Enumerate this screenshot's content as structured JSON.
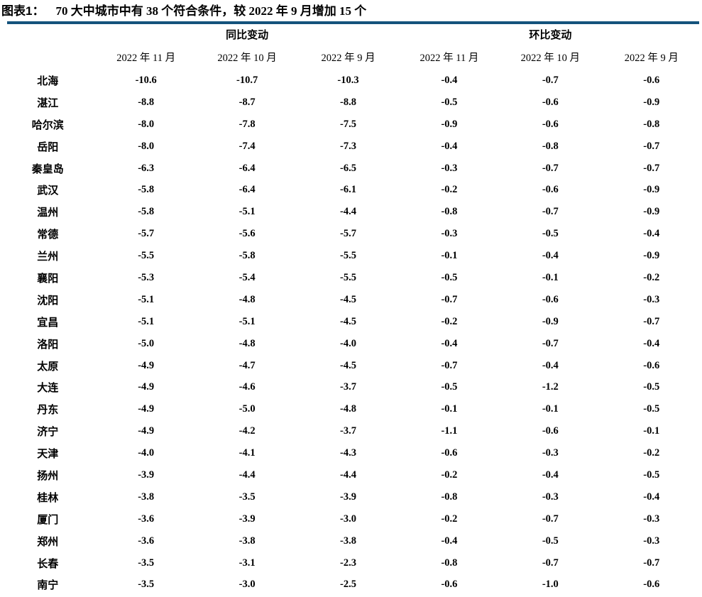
{
  "header": {
    "tag": "图表1：",
    "title_text": "70 大中城市中有 38 个符合条件，较 2022 年 9 月增加 15 个"
  },
  "colors": {
    "background": "#FFFFFF",
    "text": "#000000",
    "accent_line": "#14537C"
  },
  "chart_data": {
    "type": "table",
    "title": "图表1： 70 大中城市中有 38 个符合条件，较 2022 年 9 月增加 15 个",
    "group_headers": [
      "同比变动",
      "环比变动"
    ],
    "city_column_header": "",
    "month_headers": [
      "2022 年 11 月",
      "2022 年 10 月",
      "2022 年 9 月",
      "2022 年 11 月",
      "2022 年 10 月",
      "2022 年 9 月"
    ],
    "rows": [
      {
        "city": "北海",
        "values": [
          "-10.6",
          "-10.7",
          "-10.3",
          "-0.4",
          "-0.7",
          "-0.6"
        ]
      },
      {
        "city": "湛江",
        "values": [
          "-8.8",
          "-8.7",
          "-8.8",
          "-0.5",
          "-0.6",
          "-0.9"
        ]
      },
      {
        "city": "哈尔滨",
        "values": [
          "-8.0",
          "-7.8",
          "-7.5",
          "-0.9",
          "-0.6",
          "-0.8"
        ]
      },
      {
        "city": "岳阳",
        "values": [
          "-8.0",
          "-7.4",
          "-7.3",
          "-0.4",
          "-0.8",
          "-0.7"
        ]
      },
      {
        "city": "秦皇岛",
        "values": [
          "-6.3",
          "-6.4",
          "-6.5",
          "-0.3",
          "-0.7",
          "-0.7"
        ]
      },
      {
        "city": "武汉",
        "values": [
          "-5.8",
          "-6.4",
          "-6.1",
          "-0.2",
          "-0.6",
          "-0.9"
        ]
      },
      {
        "city": "温州",
        "values": [
          "-5.8",
          "-5.1",
          "-4.4",
          "-0.8",
          "-0.7",
          "-0.9"
        ]
      },
      {
        "city": "常德",
        "values": [
          "-5.7",
          "-5.6",
          "-5.7",
          "-0.3",
          "-0.5",
          "-0.4"
        ]
      },
      {
        "city": "兰州",
        "values": [
          "-5.5",
          "-5.8",
          "-5.5",
          "-0.1",
          "-0.4",
          "-0.9"
        ]
      },
      {
        "city": "襄阳",
        "values": [
          "-5.3",
          "-5.4",
          "-5.5",
          "-0.5",
          "-0.1",
          "-0.2"
        ]
      },
      {
        "city": "沈阳",
        "values": [
          "-5.1",
          "-4.8",
          "-4.5",
          "-0.7",
          "-0.6",
          "-0.3"
        ]
      },
      {
        "city": "宜昌",
        "values": [
          "-5.1",
          "-5.1",
          "-4.5",
          "-0.2",
          "-0.9",
          "-0.7"
        ]
      },
      {
        "city": "洛阳",
        "values": [
          "-5.0",
          "-4.8",
          "-4.0",
          "-0.4",
          "-0.7",
          "-0.4"
        ]
      },
      {
        "city": "太原",
        "values": [
          "-4.9",
          "-4.7",
          "-4.5",
          "-0.7",
          "-0.4",
          "-0.6"
        ]
      },
      {
        "city": "大连",
        "values": [
          "-4.9",
          "-4.6",
          "-3.7",
          "-0.5",
          "-1.2",
          "-0.5"
        ]
      },
      {
        "city": "丹东",
        "values": [
          "-4.9",
          "-5.0",
          "-4.8",
          "-0.1",
          "-0.1",
          "-0.5"
        ]
      },
      {
        "city": "济宁",
        "values": [
          "-4.9",
          "-4.2",
          "-3.7",
          "-1.1",
          "-0.6",
          "-0.1"
        ]
      },
      {
        "city": "天津",
        "values": [
          "-4.0",
          "-4.1",
          "-4.3",
          "-0.6",
          "-0.3",
          "-0.2"
        ]
      },
      {
        "city": "扬州",
        "values": [
          "-3.9",
          "-4.4",
          "-4.4",
          "-0.2",
          "-0.4",
          "-0.5"
        ]
      },
      {
        "city": "桂林",
        "values": [
          "-3.8",
          "-3.5",
          "-3.9",
          "-0.8",
          "-0.3",
          "-0.4"
        ]
      },
      {
        "city": "厦门",
        "values": [
          "-3.6",
          "-3.9",
          "-3.0",
          "-0.2",
          "-0.7",
          "-0.3"
        ]
      },
      {
        "city": "郑州",
        "values": [
          "-3.6",
          "-3.8",
          "-3.8",
          "-0.4",
          "-0.5",
          "-0.3"
        ]
      },
      {
        "city": "长春",
        "values": [
          "-3.5",
          "-3.1",
          "-2.3",
          "-0.8",
          "-0.7",
          "-0.7"
        ]
      },
      {
        "city": "南宁",
        "values": [
          "-3.5",
          "-3.0",
          "-2.5",
          "-0.6",
          "-1.0",
          "-0.6"
        ]
      }
    ]
  }
}
